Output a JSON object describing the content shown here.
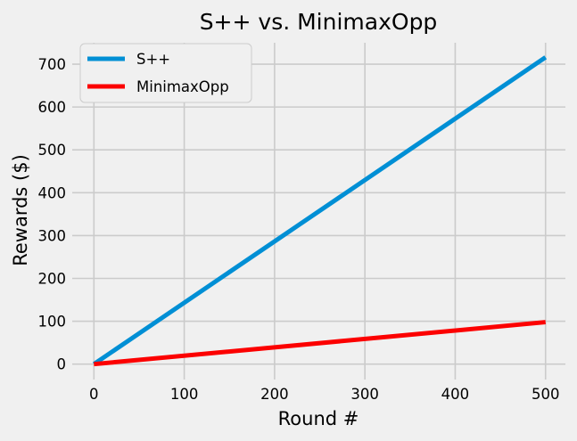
{
  "chart_data": {
    "type": "line",
    "title": "S++ vs. MinimaxOpp",
    "xlabel": "Round #",
    "ylabel": "Rewards ($)",
    "xlim": [
      -24,
      522
    ],
    "ylim": [
      -36,
      750
    ],
    "xticks": [
      0,
      100,
      200,
      300,
      400,
      500
    ],
    "yticks": [
      0,
      100,
      200,
      300,
      400,
      500,
      600,
      700
    ],
    "grid": true,
    "legend": "top-left",
    "series": [
      {
        "name": "S++",
        "color": "#008fd5",
        "x": [
          0,
          500
        ],
        "y": [
          0,
          716
        ]
      },
      {
        "name": "MinimaxOpp",
        "color": "#fc0000",
        "x": [
          0,
          500
        ],
        "y": [
          0,
          98
        ]
      }
    ]
  }
}
